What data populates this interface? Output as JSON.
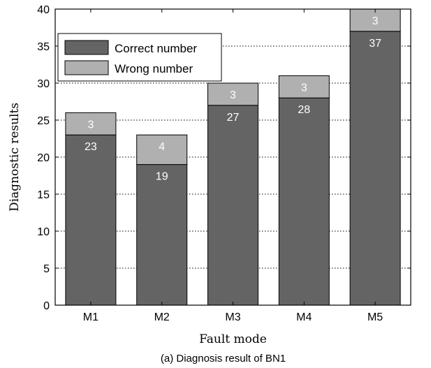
{
  "chart_data": {
    "type": "bar",
    "stacked": true,
    "categories": [
      "M1",
      "M2",
      "M3",
      "M4",
      "M5"
    ],
    "series": [
      {
        "name": "Correct number",
        "values": [
          23,
          19,
          27,
          28,
          37
        ],
        "color": "#646464"
      },
      {
        "name": "Wrong number",
        "values": [
          3,
          4,
          3,
          3,
          3
        ],
        "color": "#b0b0b0"
      }
    ],
    "xlabel": "Fault mode",
    "ylabel": "Diagnostic results",
    "ylim": [
      0,
      40
    ],
    "yticks": [
      0,
      5,
      10,
      15,
      20,
      25,
      30,
      35,
      40
    ],
    "grid": "horizontal dotted",
    "legend": "top-left",
    "caption": "(a) Diagnosis result of BN1"
  }
}
